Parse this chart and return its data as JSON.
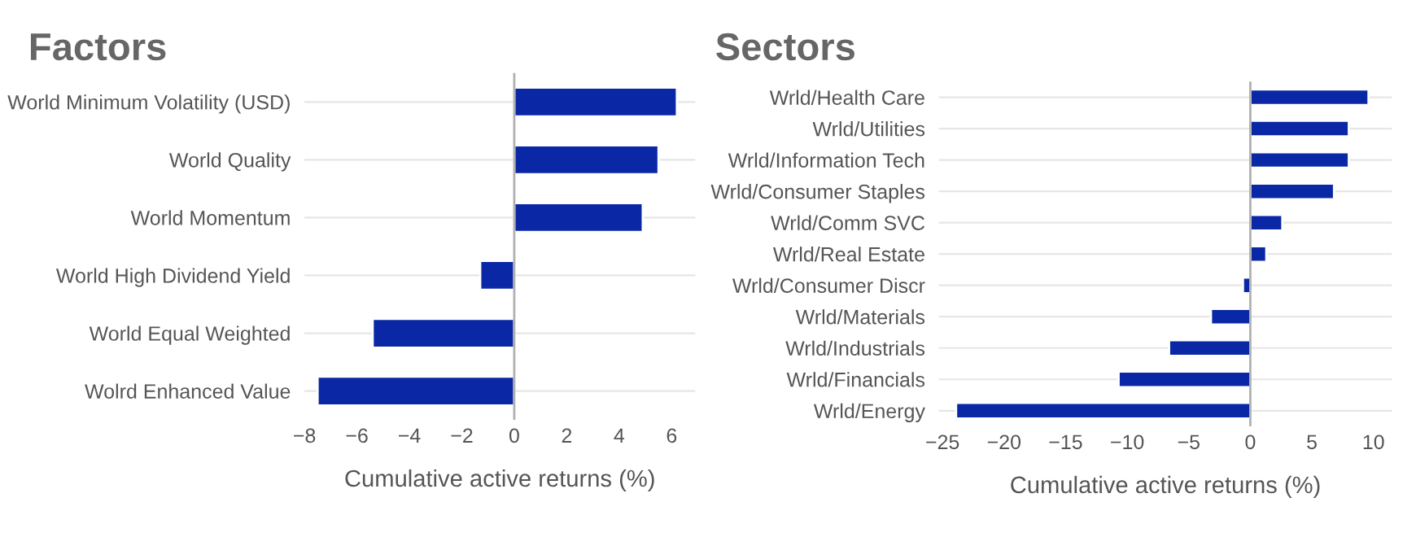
{
  "chart_data": [
    {
      "type": "bar",
      "title": "Factors",
      "orientation": "horizontal",
      "xlabel": "Cumulative active returns (%)",
      "categories": [
        "World Minimum Volatility (USD)",
        "World Quality",
        "World Momentum",
        "World High Dividend Yield",
        "World Equal Weighted",
        "Wolrd Enhanced Value"
      ],
      "values": [
        6.2,
        5.5,
        4.9,
        -1.3,
        -5.4,
        -7.5
      ],
      "color": "#0a28a6",
      "xlim": [
        -8,
        6.9
      ],
      "xticks": [
        {
          "value": -8,
          "label": "−8"
        },
        {
          "value": -6,
          "label": "−6"
        },
        {
          "value": -4,
          "label": "−4"
        },
        {
          "value": -2,
          "label": "−2"
        },
        0,
        2,
        4,
        6
      ],
      "grid": "y"
    },
    {
      "type": "bar",
      "title": "Sectors",
      "orientation": "horizontal",
      "xlabel": "Cumulative active returns (%)",
      "categories": [
        "Wrld/Health Care",
        "Wrld/Utilities",
        "Wrld/Information Tech",
        "Wrld/Consumer Staples",
        "Wrld/Comm SVC",
        "Wrld/Real Estate",
        "Wrld/Consumer Discr",
        "Wrld/Materials",
        "Wrld/Industrials",
        "Wrld/Financials",
        "Wrld/Energy"
      ],
      "values": [
        9.6,
        8.0,
        8.0,
        6.8,
        2.6,
        1.3,
        -0.6,
        -3.2,
        -6.6,
        -10.7,
        -23.9
      ],
      "color": "#0a28a6",
      "xlim": [
        -25.3,
        11.5
      ],
      "xticks": [
        {
          "value": -25,
          "label": "−25"
        },
        {
          "value": -20,
          "label": "−20"
        },
        {
          "value": -15,
          "label": "−15"
        },
        {
          "value": -10,
          "label": "−10"
        },
        {
          "value": -5,
          "label": "−5"
        },
        0,
        5,
        10
      ],
      "grid": "y"
    }
  ]
}
